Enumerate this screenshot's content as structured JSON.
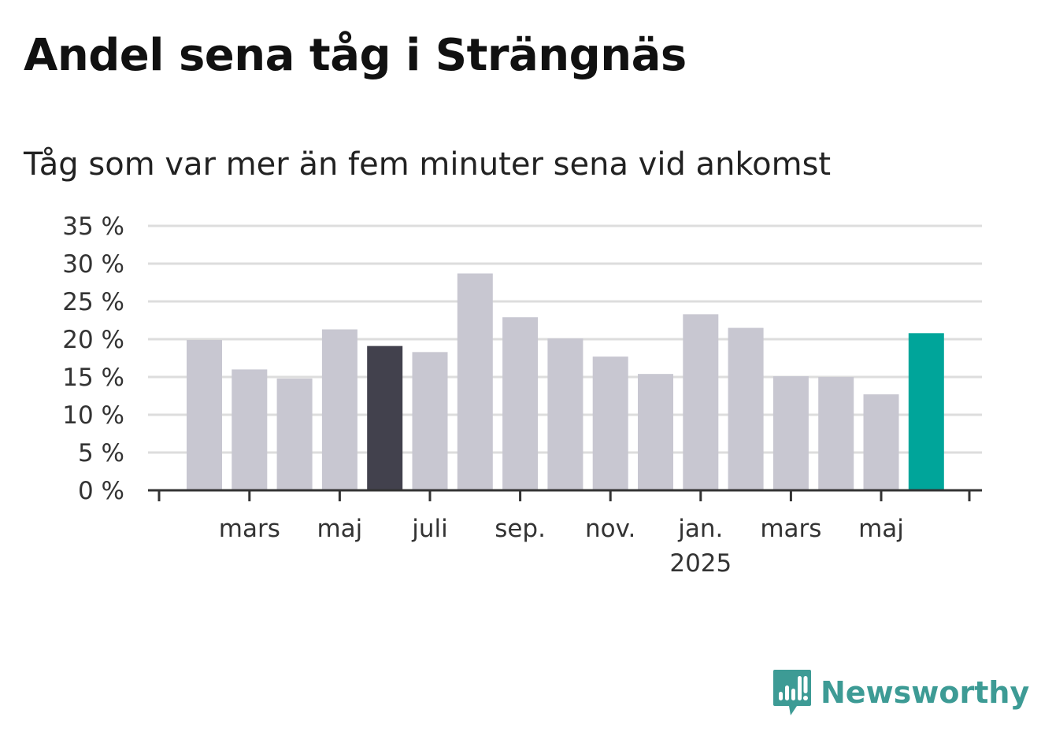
{
  "title": "Andel sena tåg i Strängnäs",
  "subtitle": "Tåg som var mer än fem minuter sena vid ankomst",
  "brand": {
    "name": "Newsworthy",
    "color": "#3d9b95",
    "icon": "newsworthy-chart-bubble-icon"
  },
  "colors": {
    "default_bar": "#c8c7d1",
    "highlight_bar": "#42414d",
    "latest_bar": "#00a59a",
    "grid": "#dddddd",
    "axis": "#333333"
  },
  "chart_data": {
    "type": "bar",
    "title": "Andel sena tåg i Strängnäs",
    "subtitle": "Tåg som var mer än fem minuter sena vid ankomst",
    "xlabel": "",
    "ylabel": "",
    "ylim": [
      0,
      35
    ],
    "yticks": [
      0,
      5,
      10,
      15,
      20,
      25,
      30,
      35
    ],
    "ytick_labels": [
      "0 %",
      "5 %",
      "10 %",
      "15 %",
      "20 %",
      "25 %",
      "30 %",
      "35 %"
    ],
    "grid": true,
    "x_start": "2024-02",
    "categories": [
      "2024-02",
      "2024-03",
      "2024-04",
      "2024-05",
      "2024-06",
      "2024-07",
      "2024-08",
      "2024-09",
      "2024-10",
      "2024-11",
      "2024-12",
      "2025-01",
      "2025-02",
      "2025-03",
      "2025-04",
      "2025-05",
      "2025-06"
    ],
    "values": [
      19.9,
      16.0,
      14.8,
      21.3,
      19.1,
      18.3,
      28.7,
      22.9,
      20.1,
      17.7,
      15.4,
      23.3,
      21.5,
      15.1,
      15.0,
      12.7,
      20.8
    ],
    "highlight": {
      "2024-06": "dark",
      "2025-06": "latest"
    },
    "xtick_labels": [
      {
        "month": "2024-03",
        "label": "mars",
        "sublabel": ""
      },
      {
        "month": "2024-05",
        "label": "maj",
        "sublabel": ""
      },
      {
        "month": "2024-07",
        "label": "juli",
        "sublabel": ""
      },
      {
        "month": "2024-09",
        "label": "sep.",
        "sublabel": ""
      },
      {
        "month": "2024-11",
        "label": "nov.",
        "sublabel": ""
      },
      {
        "month": "2025-01",
        "label": "jan.",
        "sublabel": "2025"
      },
      {
        "month": "2025-03",
        "label": "mars",
        "sublabel": ""
      },
      {
        "month": "2025-05",
        "label": "maj",
        "sublabel": ""
      }
    ]
  }
}
